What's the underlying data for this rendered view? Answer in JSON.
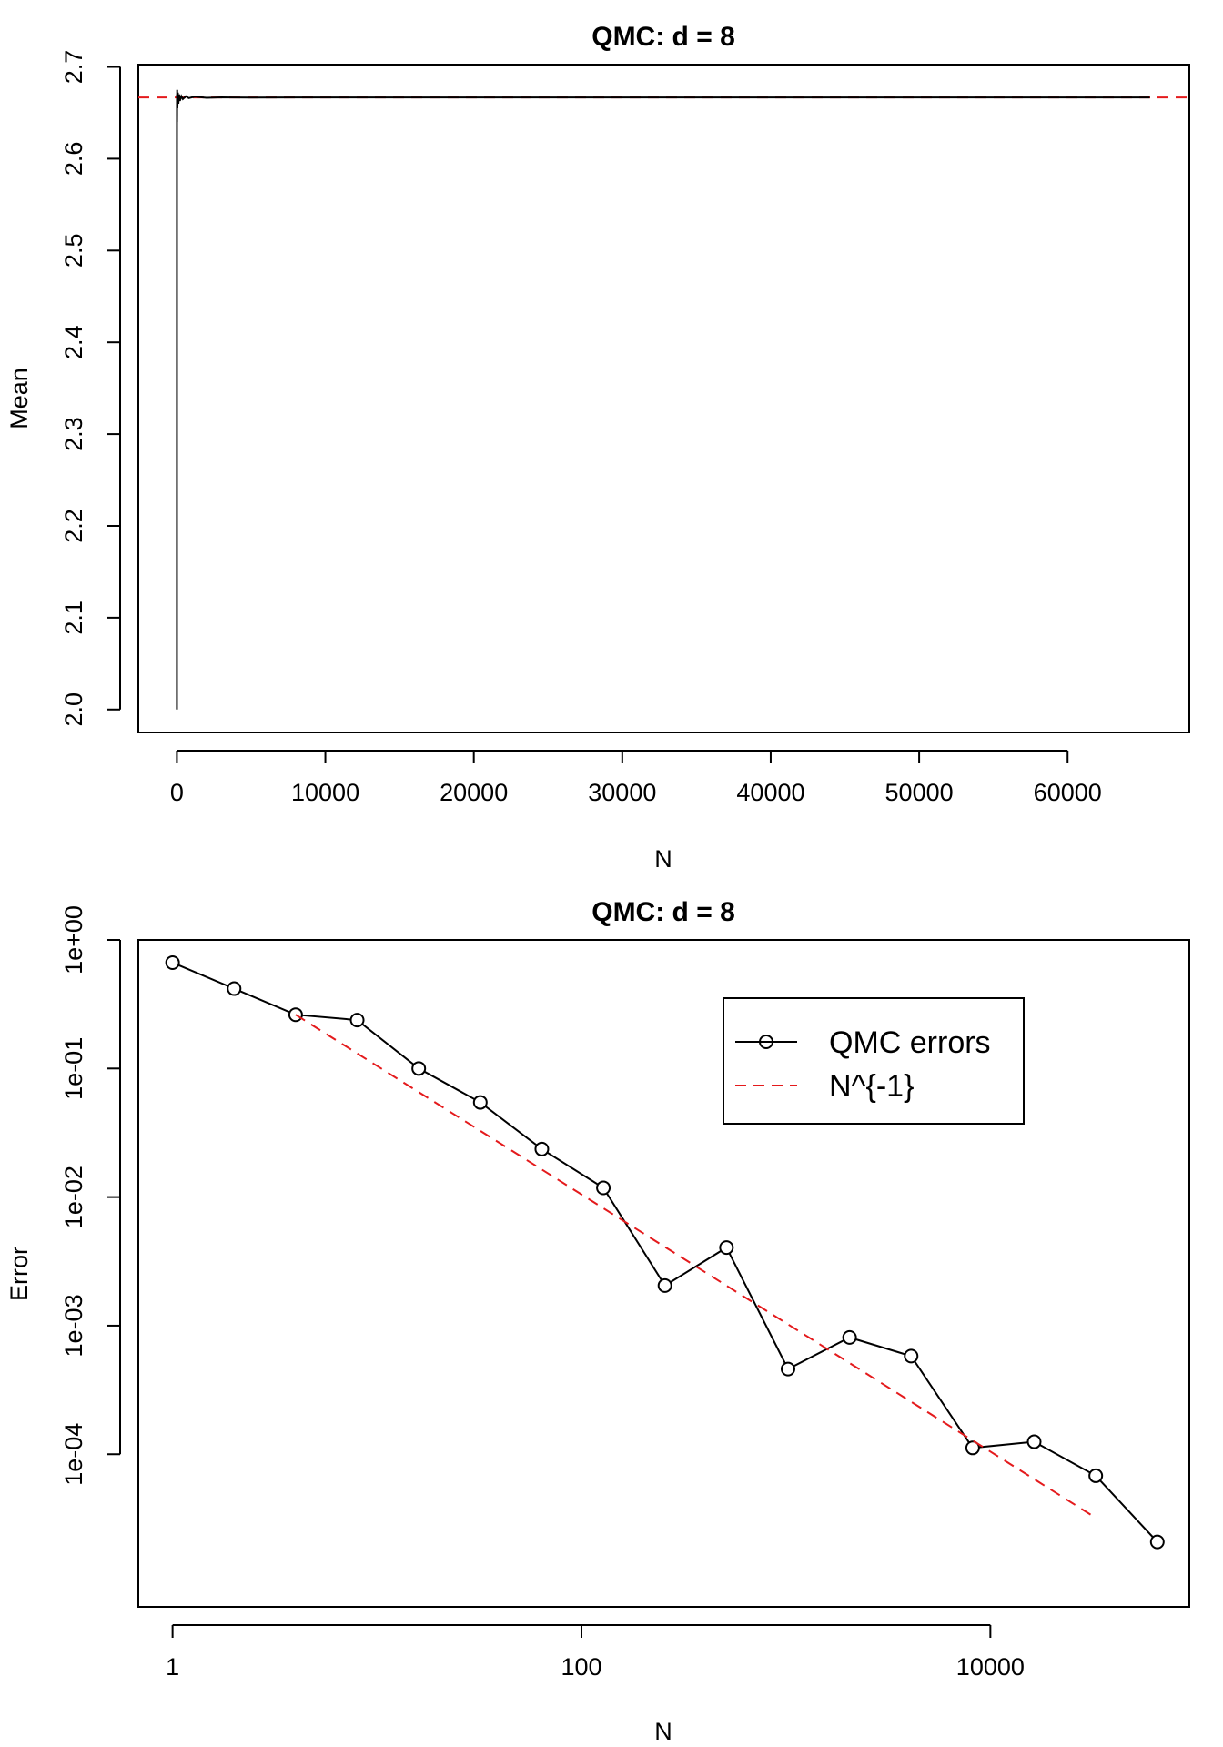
{
  "colors": {
    "data": "#000000",
    "reference": "#e41a1c",
    "background": "#ffffff"
  },
  "chart_data": [
    {
      "type": "line",
      "title": "QMC: d = 8",
      "xlabel": "N",
      "ylabel": "Mean",
      "xlim": [
        -2600,
        68200
      ],
      "ylim": [
        1.975,
        2.7025
      ],
      "x_scale": "linear",
      "y_scale": "linear",
      "xticks": [
        0,
        10000,
        20000,
        30000,
        40000,
        50000,
        60000
      ],
      "xtick_labels": [
        "0",
        "10000",
        "20000",
        "30000",
        "40000",
        "50000",
        "60000"
      ],
      "yticks": [
        2.0,
        2.1,
        2.2,
        2.3,
        2.4,
        2.5,
        2.6,
        2.7
      ],
      "ytick_labels": [
        "2.0",
        "2.1",
        "2.2",
        "2.3",
        "2.4",
        "2.5",
        "2.6",
        "2.7"
      ],
      "grid": false,
      "series": [
        {
          "name": "",
          "style": "solid",
          "points": [
            [
              1,
              2.0
            ],
            [
              2,
              2.61
            ],
            [
              4,
              2.67
            ],
            [
              8,
              2.64
            ],
            [
              16,
              2.675
            ],
            [
              32,
              2.655
            ],
            [
              64,
              2.672
            ],
            [
              100,
              2.66
            ],
            [
              150,
              2.67
            ],
            [
              200,
              2.663
            ],
            [
              300,
              2.668
            ],
            [
              400,
              2.665
            ],
            [
              600,
              2.668
            ],
            [
              800,
              2.666
            ],
            [
              1200,
              2.6675
            ],
            [
              2000,
              2.6663
            ],
            [
              3000,
              2.6668
            ],
            [
              5000,
              2.6666
            ],
            [
              8000,
              2.6667
            ],
            [
              12000,
              2.6667
            ],
            [
              65536,
              2.66667
            ]
          ]
        }
      ],
      "reference_lines": [
        {
          "orientation": "horizontal",
          "value": 2.6667,
          "style": "dashed",
          "color": "red"
        }
      ]
    },
    {
      "type": "line",
      "title": "QMC: d = 8",
      "xlabel": "N",
      "ylabel": "Error",
      "x_scale": "log",
      "y_scale": "log",
      "xlim": [
        0.68,
        94000
      ],
      "ylim": [
        6.5e-06,
        1.0
      ],
      "xticks": [
        1,
        100,
        10000
      ],
      "xtick_labels": [
        "1",
        "100",
        "10000"
      ],
      "yticks": [
        1,
        0.1,
        0.01,
        0.001,
        0.0001
      ],
      "ytick_labels": [
        "1e+00",
        "1e-01",
        "1e-02",
        "1e-03",
        "1e-04"
      ],
      "grid": false,
      "legend": {
        "position": "top-right",
        "entries": [
          {
            "label": "QMC errors",
            "style": "line-with-circle",
            "color": "black"
          },
          {
            "label": "N^{-1}",
            "style": "dashed",
            "color": "red"
          }
        ]
      },
      "series": [
        {
          "name": "QMC errors",
          "style": "solid-with-circles",
          "x": [
            1,
            2,
            4,
            8,
            16,
            32,
            64,
            128,
            256,
            512,
            1024,
            2048,
            4096,
            8192,
            16384,
            32768,
            65536
          ],
          "y": [
            0.666,
            0.418,
            0.262,
            0.238,
            0.1,
            0.0545,
            0.0236,
            0.0118,
            0.00205,
            0.00405,
            0.00046,
            0.00081,
            0.00058,
            0.000112,
            0.000125,
            6.8e-05,
            2.08e-05
          ]
        },
        {
          "name": "N^{-1}",
          "style": "dashed",
          "x": [
            4,
            32768
          ],
          "y": [
            0.262,
            3.2e-05
          ]
        }
      ]
    }
  ]
}
